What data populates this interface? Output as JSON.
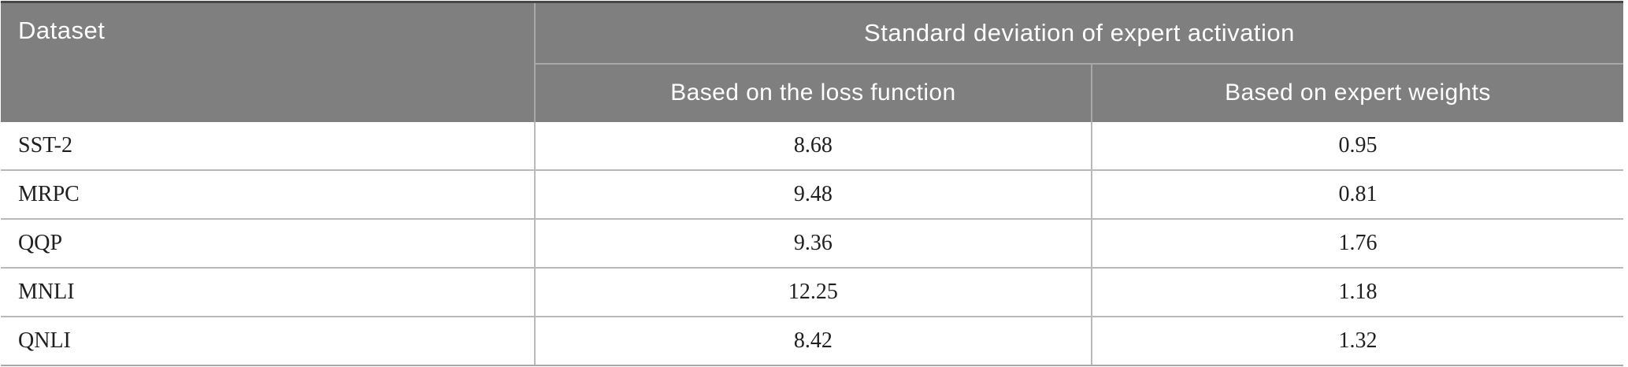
{
  "table": {
    "header": {
      "dataset_label": "Dataset",
      "group_label": "Standard deviation of expert activation",
      "sub_labels": {
        "loss": "Based on the loss function",
        "weights": "Based on expert weights"
      }
    },
    "rows": [
      {
        "dataset": "SST-2",
        "loss_value": "8.68",
        "weights_value": "0.95"
      },
      {
        "dataset": "MRPC",
        "loss_value": "9.48",
        "weights_value": "0.81"
      },
      {
        "dataset": "QQP",
        "loss_value": "9.36",
        "weights_value": "1.76"
      },
      {
        "dataset": "MNLI",
        "loss_value": "12.25",
        "weights_value": "1.18"
      },
      {
        "dataset": "QNLI",
        "loss_value": "8.42",
        "weights_value": "1.32"
      }
    ]
  },
  "colors": {
    "header_background": "#7f7f7f",
    "header_text": "#ffffff",
    "top_rule": "#474747",
    "row_divider": "#b9b9b9",
    "header_divider": "#a8a8a8",
    "body_text": "#1f1f1f"
  },
  "chart_data": {
    "type": "table",
    "title": "Standard deviation of expert activation",
    "categories": [
      "SST-2",
      "MRPC",
      "QQP",
      "MNLI",
      "QNLI"
    ],
    "series": [
      {
        "name": "Based on the loss function",
        "values": [
          8.68,
          9.48,
          9.36,
          12.25,
          8.42
        ]
      },
      {
        "name": "Based on expert weights",
        "values": [
          0.95,
          0.81,
          1.76,
          1.18,
          1.32
        ]
      }
    ]
  }
}
